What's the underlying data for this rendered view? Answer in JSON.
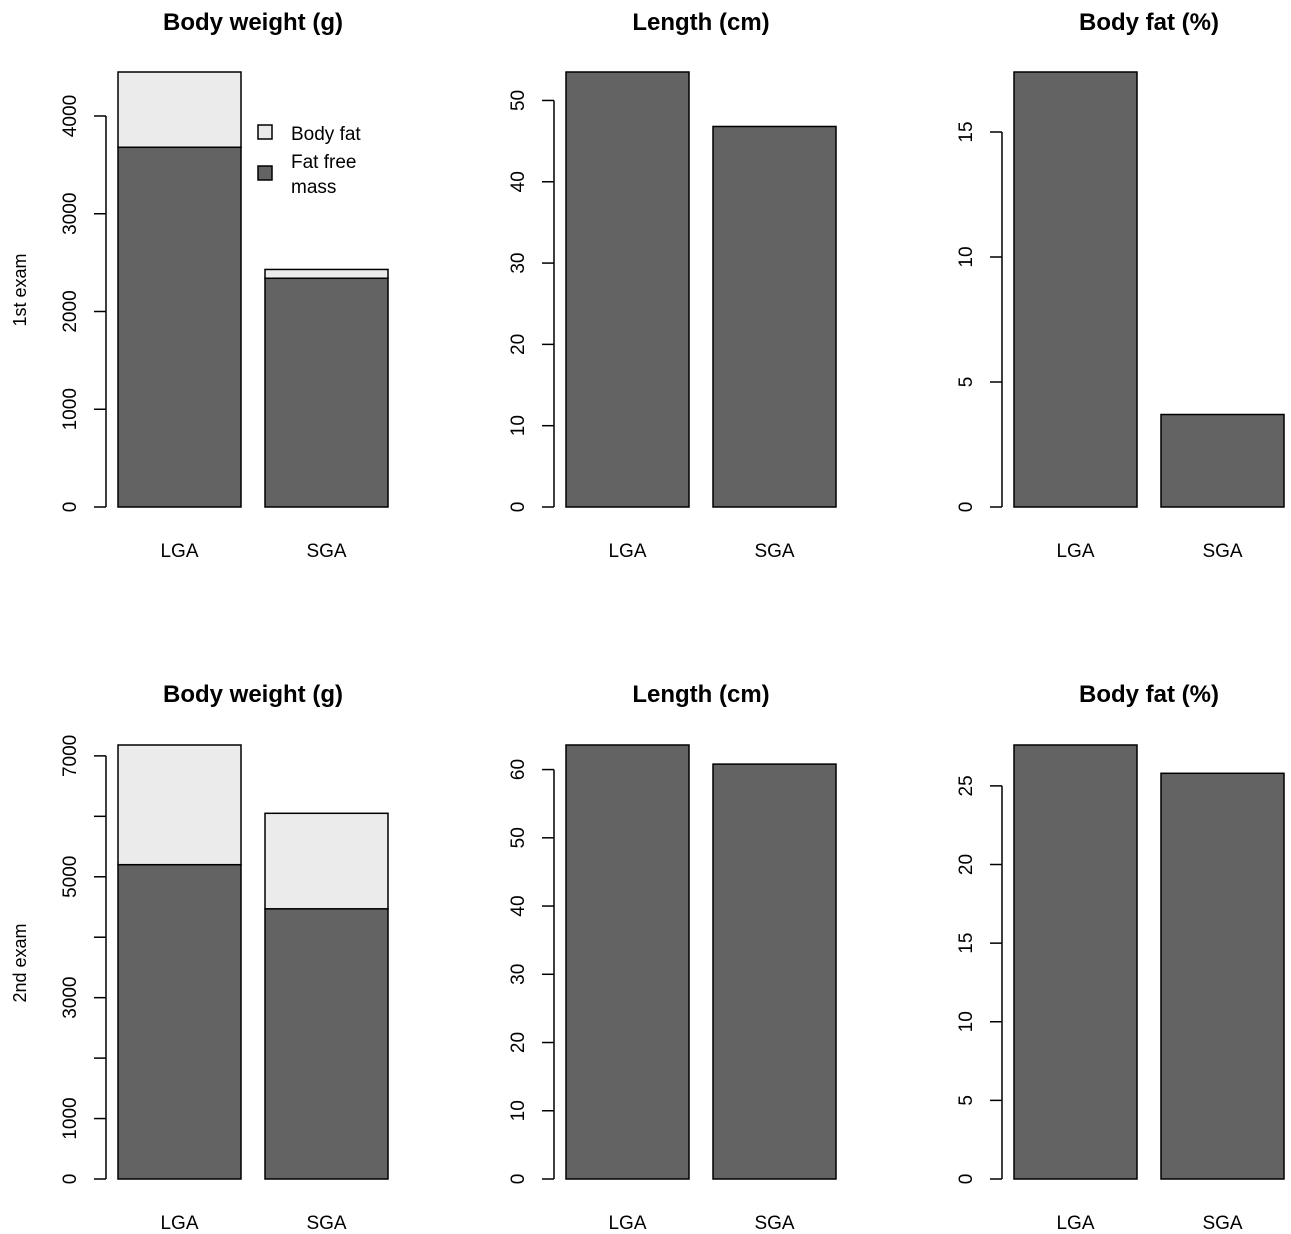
{
  "colors": {
    "fat_free_mass": "#636363",
    "body_fat": "#ebebeb",
    "outline": "#000000"
  },
  "row_labels": [
    "1st exam",
    "2nd exam"
  ],
  "legend": {
    "entries": [
      {
        "label_lines": [
          "Body fat"
        ],
        "color": "#ebebeb"
      },
      {
        "label_lines": [
          "Fat free",
          "mass"
        ],
        "color": "#636363"
      }
    ]
  },
  "chart_data": [
    {
      "type": "bar",
      "stacked": true,
      "title": "Body weight (g)",
      "row": "1st exam",
      "categories": [
        "LGA",
        "SGA"
      ],
      "series": [
        {
          "name": "Fat free mass",
          "values": [
            3680,
            2340
          ]
        },
        {
          "name": "Body fat",
          "values": [
            770,
            90
          ]
        }
      ],
      "ylim": [
        0,
        4450
      ],
      "yticks": [
        0,
        1000,
        2000,
        3000,
        4000
      ],
      "legend": "top-right",
      "grid": false
    },
    {
      "type": "bar",
      "title": "Length (cm)",
      "row": "1st exam",
      "categories": [
        "LGA",
        "SGA"
      ],
      "values": [
        53.5,
        46.8
      ],
      "ylim": [
        0,
        53.5
      ],
      "yticks": [
        0,
        10,
        20,
        30,
        40,
        50
      ],
      "grid": false
    },
    {
      "type": "bar",
      "title": "Body fat (%)",
      "row": "1st exam",
      "categories": [
        "LGA",
        "SGA"
      ],
      "values": [
        17.4,
        3.7
      ],
      "ylim": [
        0,
        17.4
      ],
      "yticks": [
        0,
        5,
        10,
        15
      ],
      "grid": false
    },
    {
      "type": "bar",
      "stacked": true,
      "title": "Body weight (g)",
      "row": "2nd exam",
      "categories": [
        "LGA",
        "SGA"
      ],
      "series": [
        {
          "name": "Fat free mass",
          "values": [
            5200,
            4470
          ]
        },
        {
          "name": "Body fat",
          "values": [
            1980,
            1580
          ]
        }
      ],
      "ylim": [
        0,
        7180
      ],
      "yticks": [
        0,
        1000,
        3000,
        5000,
        7000
      ],
      "yticks_minor": [
        2000,
        4000,
        6000
      ],
      "grid": false
    },
    {
      "type": "bar",
      "title": "Length (cm)",
      "row": "2nd exam",
      "categories": [
        "LGA",
        "SGA"
      ],
      "values": [
        63.6,
        60.8
      ],
      "ylim": [
        0,
        63.6
      ],
      "yticks": [
        0,
        10,
        20,
        30,
        40,
        50,
        60
      ],
      "grid": false
    },
    {
      "type": "bar",
      "title": "Body fat (%)",
      "row": "2nd exam",
      "categories": [
        "LGA",
        "SGA"
      ],
      "values": [
        27.6,
        25.8
      ],
      "ylim": [
        0,
        27.6
      ],
      "yticks": [
        0,
        5,
        10,
        15,
        20,
        25
      ],
      "grid": false
    }
  ]
}
